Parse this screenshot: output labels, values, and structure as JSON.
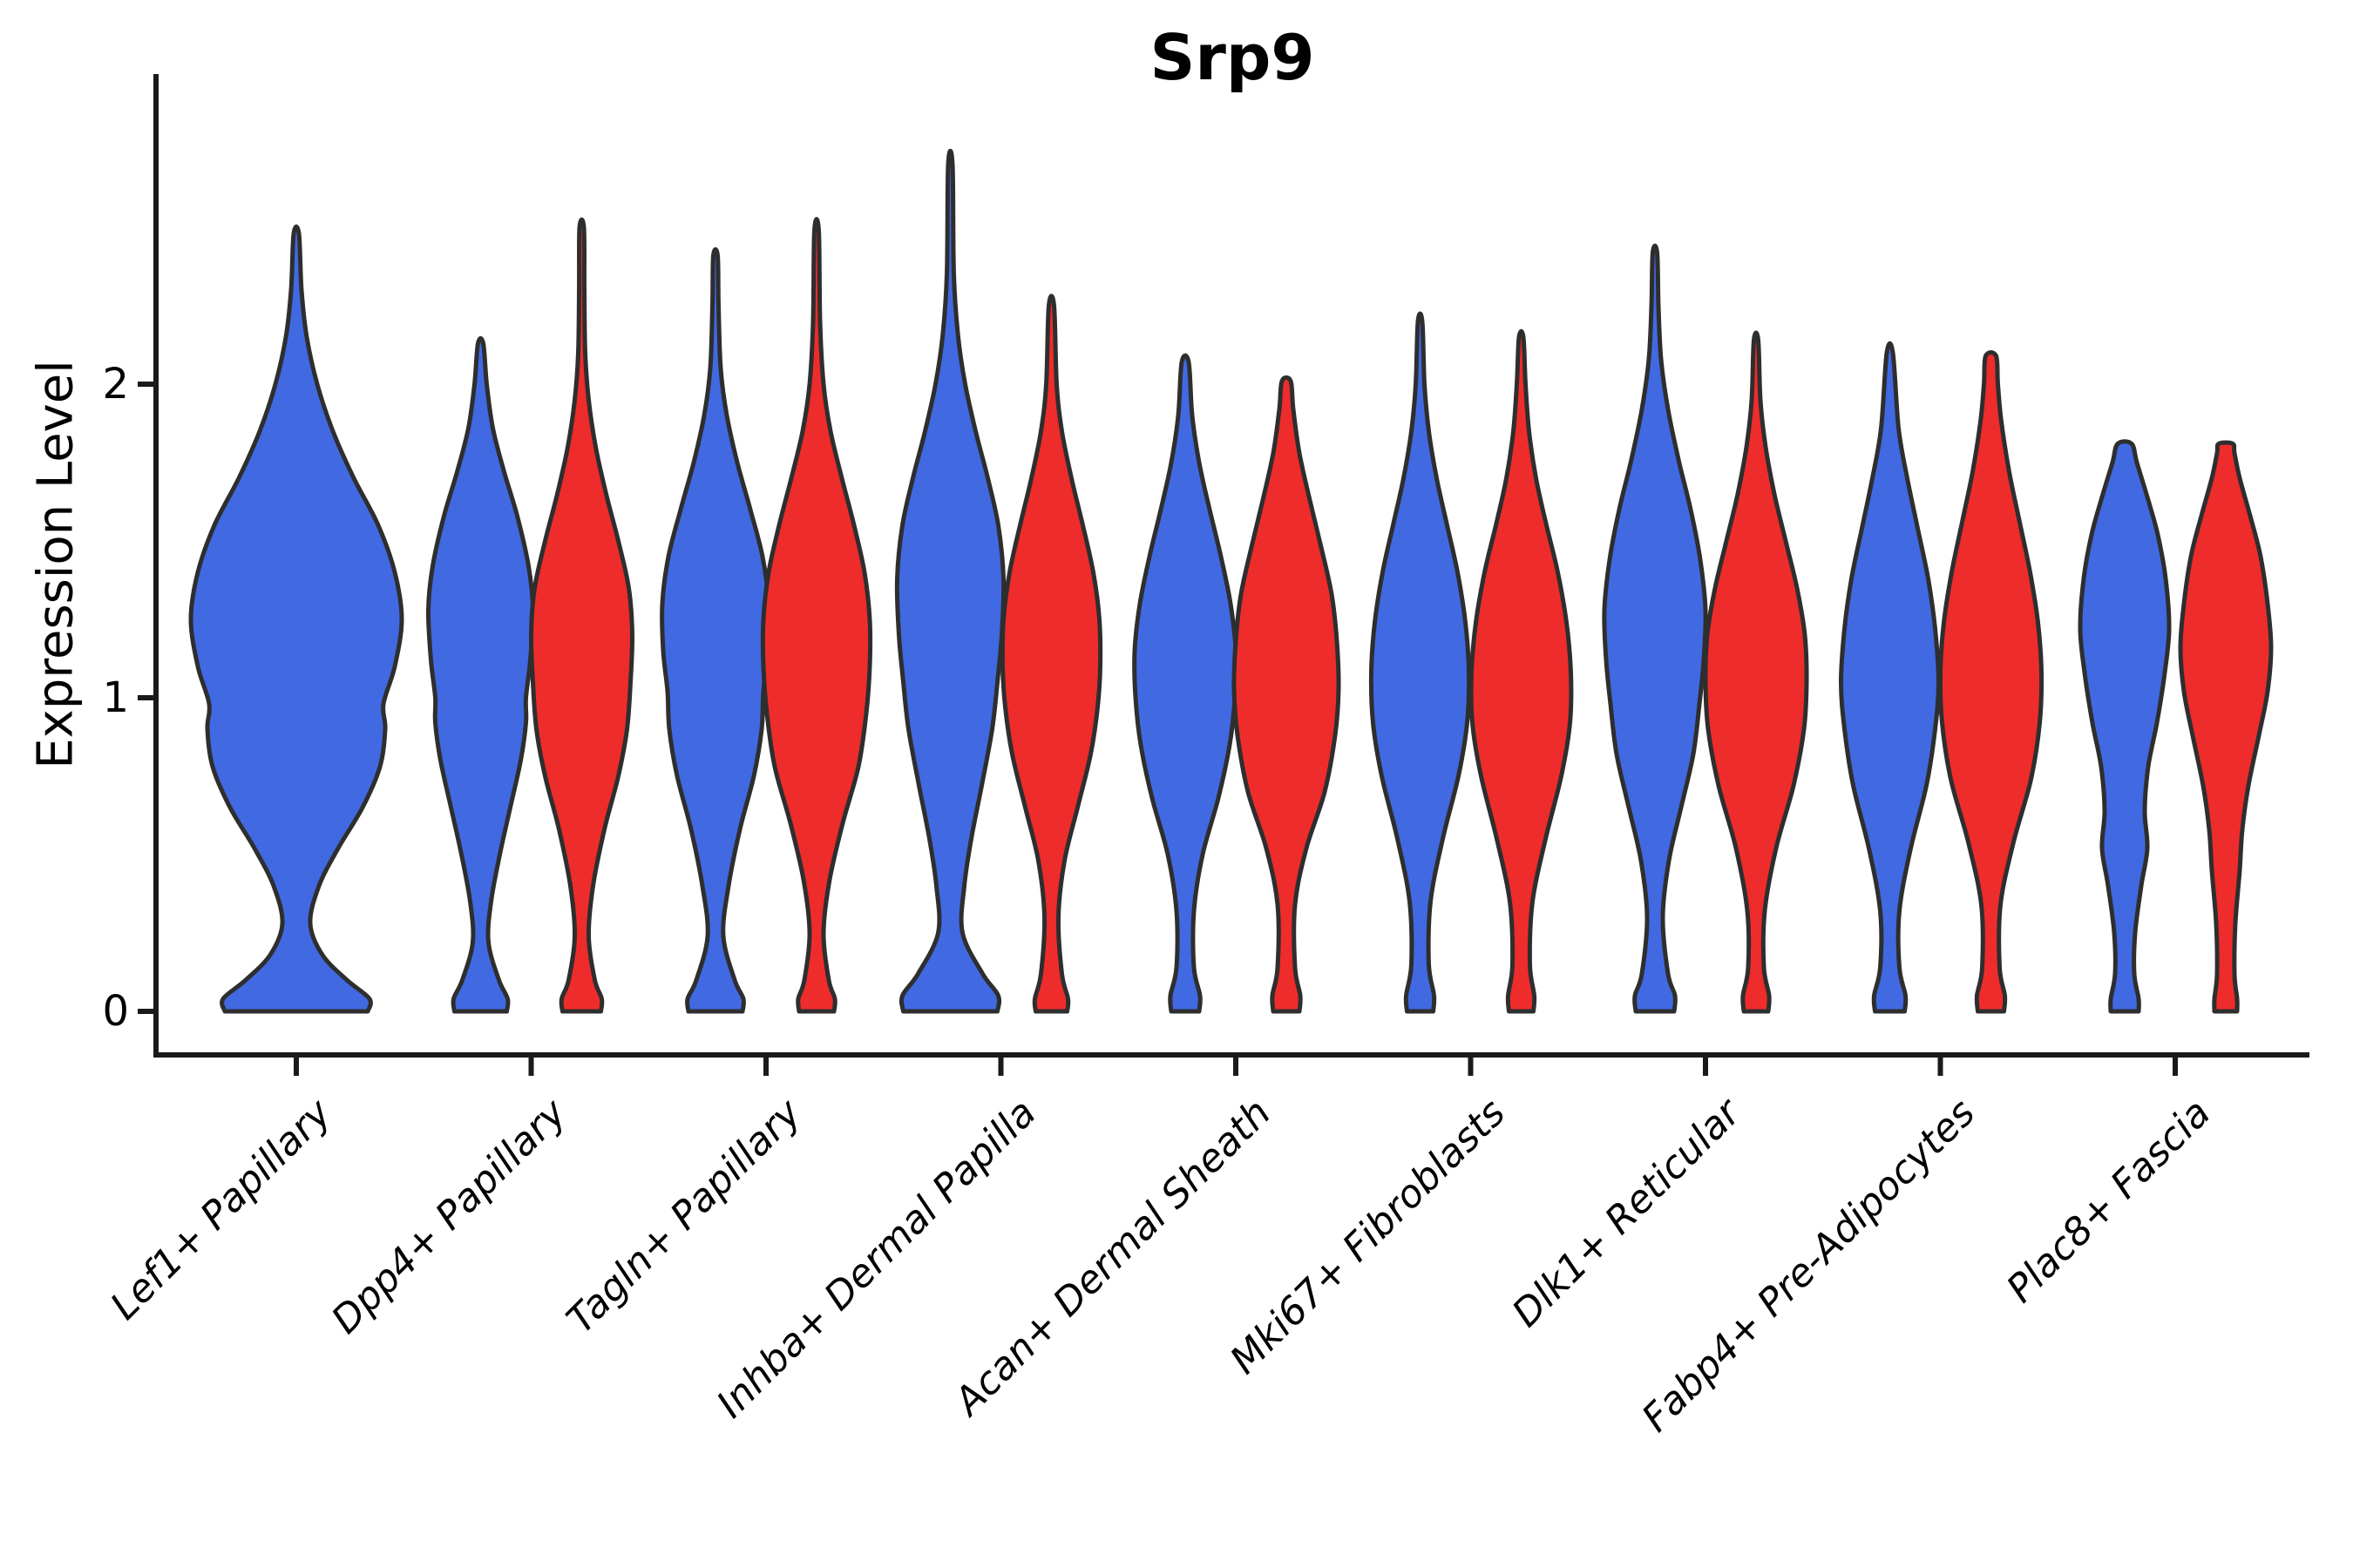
{
  "figure": {
    "title": "Srp9",
    "ylabel": "Expression Level"
  },
  "chart_data": {
    "type": "violin",
    "title": "Srp9",
    "xlabel": "",
    "ylabel": "Expression Level",
    "yticks": [
      0,
      1,
      2
    ],
    "ylim": [
      -0.14,
      2.99
    ],
    "grid": false,
    "legend": "none",
    "categories": [
      "Lef1+ Papillary",
      "Dpp4+ Papillary",
      "Tagln+ Papillary",
      "Inhba+ Dermal Papilla",
      "Acan+ Dermal Sheath",
      "Mki67+ Fibroblasts",
      "Dlk1+ Reticular",
      "Fabp4+ Pre-Adipocytes",
      "Plac8+ Fascia"
    ],
    "group_colors": {
      "blue": "#4169E1",
      "red": "#EE2C2C"
    },
    "outline_color": "#2E2E2E",
    "violins": [
      {
        "cluster": "Lef1+ Papillary",
        "col": 0,
        "group": "blue",
        "side": "full",
        "max_expression": 2.48,
        "profile": [
          [
            0,
            82
          ],
          [
            0.04,
            84
          ],
          [
            0.1,
            58
          ],
          [
            0.18,
            30
          ],
          [
            0.28,
            16
          ],
          [
            0.4,
            26
          ],
          [
            0.52,
            48
          ],
          [
            0.65,
            76
          ],
          [
            0.78,
            96
          ],
          [
            0.9,
            102
          ],
          [
            0.98,
            100
          ],
          [
            1.1,
            113
          ],
          [
            1.25,
            121
          ],
          [
            1.4,
            113
          ],
          [
            1.55,
            94
          ],
          [
            1.7,
            66
          ],
          [
            1.85,
            42
          ],
          [
            2.0,
            24
          ],
          [
            2.15,
            12
          ],
          [
            2.3,
            6
          ],
          [
            2.48,
            3
          ]
        ]
      },
      {
        "cluster": "Dpp4+ Papillary",
        "col": 1,
        "group": "blue",
        "side": "left",
        "max_expression": 2.13,
        "profile": [
          [
            0,
            30
          ],
          [
            0.04,
            31
          ],
          [
            0.1,
            21
          ],
          [
            0.22,
            9
          ],
          [
            0.35,
            12
          ],
          [
            0.5,
            22
          ],
          [
            0.65,
            34
          ],
          [
            0.8,
            46
          ],
          [
            0.92,
            52
          ],
          [
            1.0,
            52
          ],
          [
            1.12,
            57
          ],
          [
            1.28,
            60
          ],
          [
            1.42,
            55
          ],
          [
            1.58,
            42
          ],
          [
            1.72,
            27
          ],
          [
            1.86,
            14
          ],
          [
            2.0,
            7
          ],
          [
            2.13,
            3
          ]
        ]
      },
      {
        "cluster": "Dpp4+ Papillary",
        "col": 1,
        "group": "red",
        "side": "right",
        "max_expression": 2.5,
        "profile": [
          [
            0,
            22
          ],
          [
            0.04,
            23
          ],
          [
            0.1,
            15
          ],
          [
            0.24,
            8
          ],
          [
            0.4,
            13
          ],
          [
            0.58,
            26
          ],
          [
            0.75,
            42
          ],
          [
            0.9,
            52
          ],
          [
            1.05,
            56
          ],
          [
            1.2,
            58
          ],
          [
            1.35,
            54
          ],
          [
            1.5,
            42
          ],
          [
            1.65,
            28
          ],
          [
            1.8,
            16
          ],
          [
            1.95,
            8
          ],
          [
            2.1,
            4
          ],
          [
            2.3,
            3
          ],
          [
            2.5,
            2.5
          ]
        ]
      },
      {
        "cluster": "Tagln+ Papillary",
        "col": 2,
        "group": "blue",
        "side": "left",
        "max_expression": 2.41,
        "profile": [
          [
            0,
            31
          ],
          [
            0.04,
            32
          ],
          [
            0.1,
            22
          ],
          [
            0.24,
            9
          ],
          [
            0.4,
            15
          ],
          [
            0.58,
            28
          ],
          [
            0.75,
            44
          ],
          [
            0.9,
            53
          ],
          [
            1.02,
            55
          ],
          [
            1.15,
            60
          ],
          [
            1.3,
            61
          ],
          [
            1.45,
            54
          ],
          [
            1.6,
            40
          ],
          [
            1.75,
            25
          ],
          [
            1.9,
            13
          ],
          [
            2.05,
            6
          ],
          [
            2.25,
            3.5
          ],
          [
            2.41,
            2.5
          ]
        ]
      },
      {
        "cluster": "Tagln+ Papillary",
        "col": 2,
        "group": "red",
        "side": "right",
        "max_expression": 2.49,
        "profile": [
          [
            0,
            20
          ],
          [
            0.04,
            21
          ],
          [
            0.1,
            14
          ],
          [
            0.25,
            8
          ],
          [
            0.42,
            15
          ],
          [
            0.6,
            30
          ],
          [
            0.78,
            48
          ],
          [
            0.95,
            57
          ],
          [
            1.1,
            61
          ],
          [
            1.25,
            61
          ],
          [
            1.4,
            55
          ],
          [
            1.55,
            43
          ],
          [
            1.7,
            29
          ],
          [
            1.85,
            16
          ],
          [
            2.0,
            8
          ],
          [
            2.2,
            4
          ],
          [
            2.49,
            2.5
          ]
        ]
      },
      {
        "cluster": "Inhba+ Dermal Papilla",
        "col": 3,
        "group": "blue",
        "side": "left",
        "max_expression": 2.7,
        "profile": [
          [
            0,
            54
          ],
          [
            0.05,
            55
          ],
          [
            0.12,
            37
          ],
          [
            0.25,
            14
          ],
          [
            0.4,
            16
          ],
          [
            0.55,
            24
          ],
          [
            0.72,
            36
          ],
          [
            0.9,
            48
          ],
          [
            1.05,
            54
          ],
          [
            1.2,
            59
          ],
          [
            1.38,
            61
          ],
          [
            1.55,
            55
          ],
          [
            1.7,
            43
          ],
          [
            1.85,
            29
          ],
          [
            2.0,
            17
          ],
          [
            2.15,
            9
          ],
          [
            2.35,
            4
          ],
          [
            2.7,
            2.5
          ]
        ]
      },
      {
        "cluster": "Inhba+ Dermal Papilla",
        "col": 3,
        "group": "red",
        "side": "right",
        "max_expression": 2.25,
        "profile": [
          [
            0,
            18
          ],
          [
            0.04,
            19
          ],
          [
            0.12,
            12
          ],
          [
            0.3,
            8
          ],
          [
            0.48,
            15
          ],
          [
            0.65,
            30
          ],
          [
            0.82,
            45
          ],
          [
            0.97,
            53
          ],
          [
            1.1,
            56
          ],
          [
            1.25,
            55
          ],
          [
            1.4,
            48
          ],
          [
            1.55,
            36
          ],
          [
            1.7,
            23
          ],
          [
            1.85,
            12
          ],
          [
            2.0,
            6
          ],
          [
            2.25,
            3
          ]
        ]
      },
      {
        "cluster": "Acan+ Dermal Sheath",
        "col": 4,
        "group": "blue",
        "side": "left",
        "max_expression": 2.07,
        "profile": [
          [
            0,
            16
          ],
          [
            0.05,
            17
          ],
          [
            0.14,
            10
          ],
          [
            0.32,
            10
          ],
          [
            0.5,
            20
          ],
          [
            0.68,
            38
          ],
          [
            0.85,
            51
          ],
          [
            1.0,
            57
          ],
          [
            1.15,
            58
          ],
          [
            1.3,
            52
          ],
          [
            1.45,
            41
          ],
          [
            1.6,
            28
          ],
          [
            1.75,
            16
          ],
          [
            1.9,
            8
          ],
          [
            2.07,
            4
          ]
        ]
      },
      {
        "cluster": "Acan+ Dermal Sheath",
        "col": 4,
        "group": "red",
        "side": "right",
        "max_expression": 2.01,
        "profile": [
          [
            0,
            15
          ],
          [
            0.05,
            16
          ],
          [
            0.14,
            10
          ],
          [
            0.34,
            10
          ],
          [
            0.52,
            23
          ],
          [
            0.7,
            44
          ],
          [
            0.88,
            56
          ],
          [
            1.03,
            60
          ],
          [
            1.18,
            58
          ],
          [
            1.33,
            52
          ],
          [
            1.48,
            40
          ],
          [
            1.63,
            27
          ],
          [
            1.78,
            15
          ],
          [
            1.92,
            8
          ],
          [
            2.01,
            5
          ]
        ]
      },
      {
        "cluster": "Mki67+ Fibroblasts",
        "col": 5,
        "group": "blue",
        "side": "left",
        "max_expression": 2.2,
        "profile": [
          [
            0,
            15
          ],
          [
            0.05,
            16
          ],
          [
            0.15,
            10
          ],
          [
            0.35,
            12
          ],
          [
            0.55,
            26
          ],
          [
            0.75,
            44
          ],
          [
            0.92,
            54
          ],
          [
            1.08,
            56
          ],
          [
            1.24,
            52
          ],
          [
            1.4,
            43
          ],
          [
            1.55,
            31
          ],
          [
            1.7,
            19
          ],
          [
            1.85,
            10
          ],
          [
            2.0,
            5
          ],
          [
            2.2,
            2.5
          ]
        ]
      },
      {
        "cluster": "Mki67+ Fibroblasts",
        "col": 5,
        "group": "red",
        "side": "right",
        "max_expression": 2.15,
        "profile": [
          [
            0,
            14
          ],
          [
            0.05,
            15
          ],
          [
            0.15,
            10
          ],
          [
            0.35,
            13
          ],
          [
            0.55,
            28
          ],
          [
            0.75,
            46
          ],
          [
            0.92,
            56
          ],
          [
            1.08,
            57
          ],
          [
            1.24,
            52
          ],
          [
            1.4,
            42
          ],
          [
            1.55,
            29
          ],
          [
            1.7,
            17
          ],
          [
            1.85,
            9
          ],
          [
            2.0,
            5
          ],
          [
            2.15,
            2.5
          ]
        ]
      },
      {
        "cluster": "Dlk1+ Reticular",
        "col": 6,
        "group": "blue",
        "side": "left",
        "max_expression": 2.42,
        "profile": [
          [
            0,
            22
          ],
          [
            0.05,
            23
          ],
          [
            0.12,
            15
          ],
          [
            0.3,
            9
          ],
          [
            0.48,
            16
          ],
          [
            0.65,
            30
          ],
          [
            0.82,
            44
          ],
          [
            0.98,
            51
          ],
          [
            1.12,
            56
          ],
          [
            1.28,
            58
          ],
          [
            1.44,
            52
          ],
          [
            1.6,
            41
          ],
          [
            1.76,
            27
          ],
          [
            1.92,
            15
          ],
          [
            2.08,
            7
          ],
          [
            2.25,
            4
          ],
          [
            2.42,
            2.5
          ]
        ]
      },
      {
        "cluster": "Dlk1+ Reticular",
        "col": 6,
        "group": "red",
        "side": "right",
        "max_expression": 2.14,
        "profile": [
          [
            0,
            14
          ],
          [
            0.05,
            15
          ],
          [
            0.14,
            9
          ],
          [
            0.32,
            10
          ],
          [
            0.52,
            23
          ],
          [
            0.72,
            43
          ],
          [
            0.9,
            55
          ],
          [
            1.05,
            58
          ],
          [
            1.2,
            56
          ],
          [
            1.35,
            47
          ],
          [
            1.5,
            34
          ],
          [
            1.65,
            21
          ],
          [
            1.8,
            11
          ],
          [
            1.95,
            5
          ],
          [
            2.14,
            2.5
          ]
        ]
      },
      {
        "cluster": "Fabp4+ Pre-Adipocytes",
        "col": 7,
        "group": "blue",
        "side": "left",
        "max_expression": 2.1,
        "profile": [
          [
            0,
            17
          ],
          [
            0.05,
            18
          ],
          [
            0.14,
            11
          ],
          [
            0.32,
            11
          ],
          [
            0.52,
            24
          ],
          [
            0.72,
            42
          ],
          [
            0.9,
            52
          ],
          [
            1.05,
            56
          ],
          [
            1.22,
            52
          ],
          [
            1.38,
            44
          ],
          [
            1.54,
            32
          ],
          [
            1.7,
            20
          ],
          [
            1.86,
            10
          ],
          [
            2.1,
            3.5
          ]
        ]
      },
      {
        "cluster": "Fabp4+ Pre-Adipocytes",
        "col": 7,
        "group": "red",
        "side": "right",
        "max_expression": 2.09,
        "profile": [
          [
            0,
            15
          ],
          [
            0.05,
            16
          ],
          [
            0.14,
            10
          ],
          [
            0.34,
            11
          ],
          [
            0.54,
            26
          ],
          [
            0.74,
            46
          ],
          [
            0.92,
            56
          ],
          [
            1.08,
            58
          ],
          [
            1.24,
            54
          ],
          [
            1.4,
            45
          ],
          [
            1.56,
            33
          ],
          [
            1.72,
            21
          ],
          [
            1.88,
            12
          ],
          [
            2.0,
            8
          ],
          [
            2.09,
            6
          ]
        ]
      },
      {
        "cluster": "Plac8+ Fascia",
        "col": 8,
        "group": "blue",
        "side": "left",
        "max_expression": 1.81,
        "profile": [
          [
            0,
            16
          ],
          [
            0.04,
            16
          ],
          [
            0.12,
            11
          ],
          [
            0.25,
            12
          ],
          [
            0.4,
            19
          ],
          [
            0.52,
            26
          ],
          [
            0.64,
            23
          ],
          [
            0.78,
            27
          ],
          [
            0.92,
            37
          ],
          [
            1.08,
            46
          ],
          [
            1.22,
            51
          ],
          [
            1.38,
            47
          ],
          [
            1.52,
            38
          ],
          [
            1.64,
            26
          ],
          [
            1.75,
            14
          ],
          [
            1.81,
            8
          ]
        ]
      },
      {
        "cluster": "Plac8+ Fascia",
        "col": 8,
        "group": "red",
        "side": "right",
        "max_expression": 1.81,
        "profile": [
          [
            0,
            13
          ],
          [
            0.04,
            13
          ],
          [
            0.12,
            10
          ],
          [
            0.28,
            11
          ],
          [
            0.45,
            16
          ],
          [
            0.58,
            19
          ],
          [
            0.72,
            26
          ],
          [
            0.88,
            38
          ],
          [
            1.02,
            48
          ],
          [
            1.16,
            52
          ],
          [
            1.3,
            48
          ],
          [
            1.45,
            40
          ],
          [
            1.58,
            28
          ],
          [
            1.7,
            16
          ],
          [
            1.78,
            10
          ],
          [
            1.81,
            8
          ]
        ]
      }
    ]
  }
}
